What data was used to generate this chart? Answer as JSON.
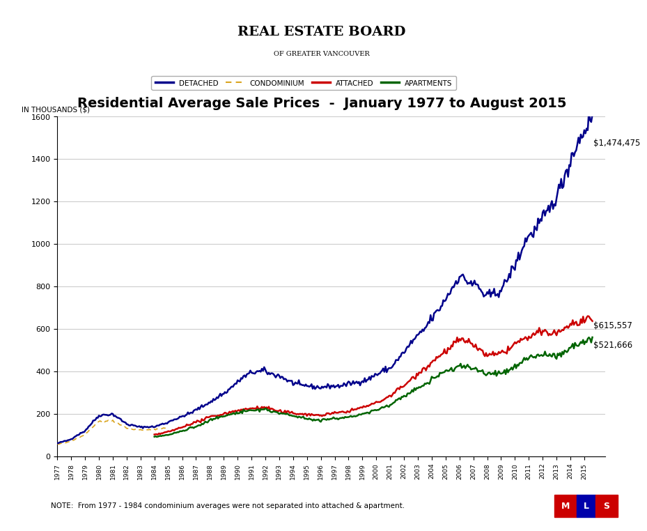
{
  "title": "Residential Average Sale Prices  -  January 1977 to August 2015",
  "ylabel": "IN THOUSANDS ($)",
  "ylim": [
    0,
    1600
  ],
  "yticks": [
    0,
    200,
    400,
    600,
    800,
    1000,
    1200,
    1400,
    1600
  ],
  "start_year": 1977,
  "end_year": 2015,
  "note": "NOTE:  From 1977 - 1984 condominium averages were not separated into attached & apartment.",
  "final_values": {
    "detached": "$1,474,475",
    "attached": "$615,557",
    "apartments": "$521,666"
  },
  "colors": {
    "detached": "#00008B",
    "condominium": "#DAA520",
    "attached": "#CC0000",
    "apartments": "#006400",
    "background": "#FFFFFF",
    "grid": "#CCCCCC"
  },
  "legend_labels": [
    "DETACHED",
    "CONDOMINIUM",
    "ATTACHED",
    "APARTMENTS"
  ],
  "bg_color": "#F5F5F0",
  "rebov_line1": "REAL ESTATE BOARD",
  "rebov_line2": "OF GREATER VANCOUVER"
}
